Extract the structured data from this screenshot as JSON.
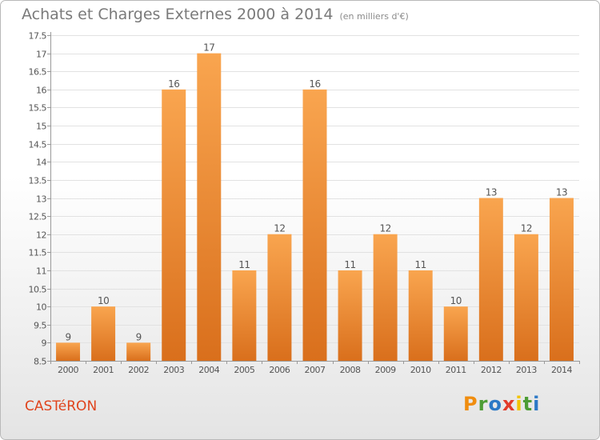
{
  "title": "Achats et Charges Externes 2000 à 2014",
  "subtitle": "(en milliers d'€)",
  "commune": "CASTéRON",
  "brand": "Proxiti",
  "colors": {
    "bar_light": "#f9a54f",
    "bar_dark": "#d96f1c",
    "commune": "#e0441d"
  },
  "chart_data": {
    "type": "bar",
    "categories": [
      "2000",
      "2001",
      "2002",
      "2003",
      "2004",
      "2005",
      "2006",
      "2007",
      "2008",
      "2009",
      "2010",
      "2011",
      "2012",
      "2013",
      "2014"
    ],
    "values": [
      9,
      10,
      9,
      16,
      17,
      11,
      12,
      16,
      11,
      12,
      11,
      10,
      13,
      12,
      13
    ],
    "data_labels": [
      "9",
      "10",
      "9",
      "16",
      "17",
      "11",
      "12",
      "16",
      "11",
      "12",
      "11",
      "10",
      "13",
      "12",
      "13"
    ],
    "ylim": [
      8.5,
      17.5
    ],
    "yticks": [
      8.5,
      9,
      9.5,
      10,
      10.5,
      11,
      11.5,
      12,
      12.5,
      13,
      13.5,
      14,
      14.5,
      15,
      15.5,
      16,
      16.5,
      17,
      17.5
    ],
    "ytick_labels": [
      "8.5",
      "9",
      "9.5",
      "10",
      "10.5",
      "11",
      "11.5",
      "12",
      "12.5",
      "13",
      "13.5",
      "14",
      "14.5",
      "15",
      "15.5",
      "16",
      "16.5",
      "17",
      "17.5"
    ],
    "grid": true,
    "legend": "none"
  }
}
